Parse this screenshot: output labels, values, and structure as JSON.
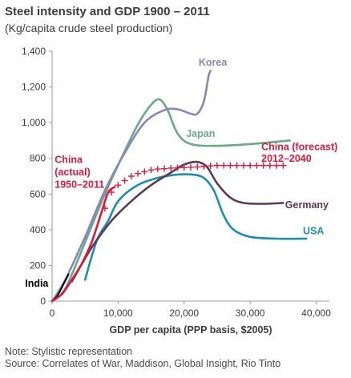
{
  "header": {
    "title": "Steel intensity and GDP 1900 – 2011",
    "subtitle": "(Kg/capita crude steel production)"
  },
  "notes": {
    "line1": "Note: Stylistic representation",
    "line2": "Source: Correlates of War, Maddison, Global Insight, Rio Tinto"
  },
  "chart_data": {
    "type": "line",
    "title": "Steel intensity and GDP 1900 – 2011",
    "subtitle": "(Kg/capita crude steel production)",
    "xlabel": "GDP per capita (PPP basis, $2005)",
    "ylabel": "",
    "xlim": [
      0,
      42000
    ],
    "ylim": [
      0,
      1400
    ],
    "x_ticks": [
      0,
      10000,
      20000,
      30000,
      40000
    ],
    "x_tick_labels": [
      "0",
      "10,000",
      "20,000",
      "30,000",
      "40,000"
    ],
    "y_ticks": [
      0,
      200,
      400,
      600,
      800,
      1000,
      1200,
      1400
    ],
    "y_tick_labels": [
      "0",
      "200",
      "400",
      "600",
      "800",
      "1,000",
      "1,200",
      "1,400"
    ],
    "grid": false,
    "colors": {
      "korea": "#8a86bd",
      "japan": "#6aa888",
      "china": "#e0193c",
      "germany": "#5c3a55",
      "usa": "#1a8fb0",
      "india": "#000000",
      "axis": "#9a9a9a",
      "text": "#3b3b3b"
    },
    "series": [
      {
        "name": "Korea",
        "key": "korea",
        "style": "solid",
        "points": [
          [
            0,
            0
          ],
          [
            2000,
            120
          ],
          [
            5000,
            360
          ],
          [
            8000,
            620
          ],
          [
            11000,
            830
          ],
          [
            14000,
            1000
          ],
          [
            17000,
            1070
          ],
          [
            19000,
            1075
          ],
          [
            21000,
            1050
          ],
          [
            22000,
            1050
          ],
          [
            23000,
            1120
          ],
          [
            23700,
            1260
          ],
          [
            24000,
            1290
          ]
        ]
      },
      {
        "name": "Japan",
        "key": "japan",
        "style": "solid",
        "points": [
          [
            0,
            0
          ],
          [
            2000,
            70
          ],
          [
            5000,
            330
          ],
          [
            8000,
            600
          ],
          [
            11000,
            840
          ],
          [
            13000,
            990
          ],
          [
            15000,
            1100
          ],
          [
            16300,
            1130
          ],
          [
            17500,
            1070
          ],
          [
            19000,
            940
          ],
          [
            21000,
            880
          ],
          [
            25000,
            870
          ],
          [
            30000,
            880
          ],
          [
            36000,
            900
          ]
        ]
      },
      {
        "name": "Germany",
        "key": "germany",
        "style": "solid",
        "points": [
          [
            3000,
            110
          ],
          [
            6000,
            300
          ],
          [
            9000,
            450
          ],
          [
            12000,
            560
          ],
          [
            15000,
            650
          ],
          [
            18000,
            720
          ],
          [
            20000,
            765
          ],
          [
            22000,
            780
          ],
          [
            23500,
            750
          ],
          [
            25000,
            660
          ],
          [
            27000,
            580
          ],
          [
            29000,
            550
          ],
          [
            32000,
            545
          ],
          [
            35000,
            550
          ]
        ]
      },
      {
        "name": "USA",
        "key": "usa",
        "style": "solid",
        "points": [
          [
            5000,
            120
          ],
          [
            6000,
            250
          ],
          [
            7000,
            360
          ],
          [
            8500,
            450
          ],
          [
            10000,
            560
          ],
          [
            12500,
            640
          ],
          [
            15000,
            680
          ],
          [
            18000,
            705
          ],
          [
            21000,
            710
          ],
          [
            23000,
            690
          ],
          [
            24500,
            620
          ],
          [
            26000,
            480
          ],
          [
            27500,
            400
          ],
          [
            30000,
            360
          ],
          [
            34000,
            350
          ],
          [
            38500,
            350
          ]
        ]
      },
      {
        "name": "China (actual) 1950–2011",
        "key": "china",
        "style": "solid",
        "points": [
          [
            0,
            0
          ],
          [
            1500,
            40
          ],
          [
            3000,
            120
          ],
          [
            4500,
            210
          ],
          [
            6000,
            330
          ],
          [
            7500,
            500
          ],
          [
            8500,
            610
          ],
          [
            9500,
            640
          ]
        ]
      },
      {
        "name": "China (forecast) 2012–2040",
        "key": "china",
        "style": "cross",
        "points": [
          [
            8000,
            520
          ],
          [
            9000,
            610
          ],
          [
            10000,
            650
          ],
          [
            11000,
            675
          ],
          [
            12000,
            700
          ],
          [
            13000,
            715
          ],
          [
            14000,
            725
          ],
          [
            15000,
            735
          ],
          [
            16000,
            740
          ],
          [
            17000,
            742
          ],
          [
            18000,
            745
          ],
          [
            19000,
            747
          ],
          [
            20000,
            748
          ],
          [
            21000,
            750
          ],
          [
            22000,
            752
          ],
          [
            23000,
            755
          ],
          [
            24000,
            758
          ],
          [
            25000,
            760
          ],
          [
            26000,
            760
          ],
          [
            27000,
            760
          ],
          [
            28000,
            760
          ],
          [
            29000,
            760
          ],
          [
            30000,
            760
          ],
          [
            31000,
            760
          ],
          [
            32000,
            760
          ],
          [
            33000,
            760
          ],
          [
            34000,
            760
          ],
          [
            35000,
            760
          ]
        ]
      },
      {
        "name": "India",
        "key": "india",
        "style": "solid",
        "points": [
          [
            0,
            0
          ],
          [
            800,
            30
          ],
          [
            1800,
            100
          ],
          [
            2500,
            150
          ]
        ]
      }
    ],
    "annotations": [
      {
        "text": "Korea",
        "key": "korea",
        "x": 22200,
        "y": 1320
      },
      {
        "text": "Japan",
        "key": "japan",
        "x": 20300,
        "y": 920
      },
      {
        "text": "China (forecast)",
        "key": "china",
        "x": 31700,
        "y": 845
      },
      {
        "text": "2012–2040",
        "key": "china",
        "x": 31700,
        "y": 780
      },
      {
        "text": "China",
        "key": "china",
        "x": 400,
        "y": 775
      },
      {
        "text": "(actual)",
        "key": "china",
        "x": 400,
        "y": 705
      },
      {
        "text": "1950–2011",
        "key": "china",
        "x": 400,
        "y": 635
      },
      {
        "text": "Germany",
        "key": "germany",
        "x": 35300,
        "y": 520
      },
      {
        "text": "USA",
        "key": "usa",
        "x": 38000,
        "y": 375
      },
      {
        "text": "India",
        "key": "india",
        "x": -4100,
        "y": 80
      }
    ]
  }
}
